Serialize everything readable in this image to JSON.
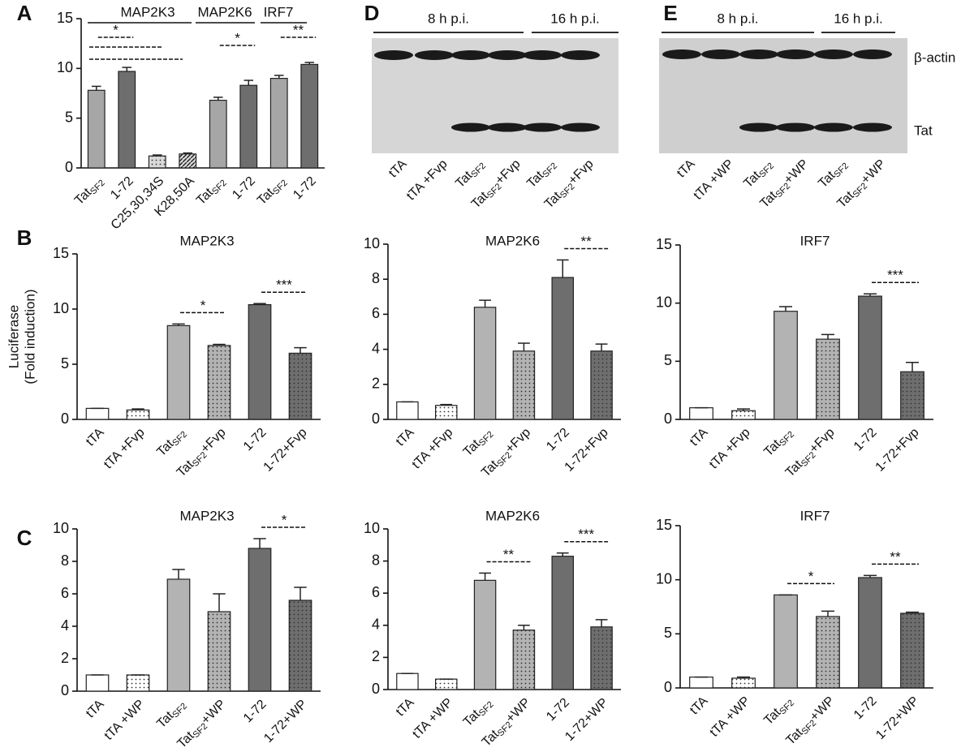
{
  "chart_data": [
    {
      "type": "bar",
      "panel": "A",
      "groups": [
        "MAP2K3",
        "MAP2K6",
        "IRF7"
      ],
      "categories": [
        {
          "text": "Tat",
          "sub": "SF2"
        },
        {
          "text": "1-72"
        },
        {
          "text": "C25,30,34S"
        },
        {
          "text": "K28,50A"
        },
        {
          "text": "Tat",
          "sub": "SF2"
        },
        {
          "text": "1-72"
        },
        {
          "text": "Tat",
          "sub": "SF2"
        },
        {
          "text": "1-72"
        }
      ],
      "values": [
        7.8,
        9.7,
        1.2,
        1.4,
        6.8,
        8.3,
        9.0,
        10.4
      ],
      "errors": [
        0.4,
        0.4,
        0.1,
        0.1,
        0.3,
        0.5,
        0.3,
        0.2
      ],
      "colors": [
        "#a6a6a6",
        "#6e6e6e",
        "#d9d9d9",
        "#d9d9d9",
        "#a6a6a6",
        "#6e6e6e",
        "#a6a6a6",
        "#6e6e6e"
      ],
      "hatch": [
        null,
        null,
        "dots",
        "stripes",
        null,
        null,
        null,
        null
      ],
      "significance": [
        "*",
        null,
        null,
        null,
        "*",
        null,
        "**",
        null
      ],
      "ylim": [
        0,
        15
      ],
      "yticks": [
        0,
        5,
        10,
        15
      ]
    },
    {
      "type": "bar",
      "panel": "B",
      "title": "MAP2K3",
      "ylabel": [
        "Luciferase",
        "(Fold induction)"
      ],
      "categories": [
        {
          "text": "tTA"
        },
        {
          "text": "tTA +Fvp"
        },
        {
          "text": "Tat",
          "sub": "SF2"
        },
        {
          "text": "Tat",
          "sub": "SF2",
          "suffix": "+Fvp"
        },
        {
          "text": "1-72"
        },
        {
          "text": "1-72+Fvp"
        }
      ],
      "values": [
        1.0,
        0.85,
        8.5,
        6.7,
        10.4,
        6.0
      ],
      "errors": [
        0,
        0.1,
        0.15,
        0.1,
        0.1,
        0.5
      ],
      "colors": [
        "#ffffff",
        "#ffffff",
        "#b3b3b3",
        "#b3b3b3",
        "#6e6e6e",
        "#6e6e6e"
      ],
      "hatch": [
        null,
        "dots",
        null,
        "dots",
        null,
        "dots"
      ],
      "significance": [
        null,
        null,
        "*",
        null,
        "***",
        null
      ],
      "ylim": [
        0,
        15
      ],
      "yticks": [
        0,
        5,
        10,
        15
      ]
    },
    {
      "type": "bar",
      "title": "MAP2K6",
      "categories": [
        {
          "text": "tTA"
        },
        {
          "text": "tTA +Fvp"
        },
        {
          "text": "Tat",
          "sub": "SF2"
        },
        {
          "text": "Tat",
          "sub": "SF2",
          "suffix": "+Fvp"
        },
        {
          "text": "1-72"
        },
        {
          "text": "1-72+Fvp"
        }
      ],
      "values": [
        1.0,
        0.8,
        6.4,
        3.9,
        8.1,
        3.9
      ],
      "errors": [
        0,
        0.05,
        0.4,
        0.45,
        1.0,
        0.4
      ],
      "colors": [
        "#ffffff",
        "#ffffff",
        "#b3b3b3",
        "#b3b3b3",
        "#6e6e6e",
        "#6e6e6e"
      ],
      "hatch": [
        null,
        "dots",
        null,
        "dots",
        null,
        "dots"
      ],
      "significance": [
        null,
        null,
        null,
        null,
        "**",
        null
      ],
      "ylim": [
        0,
        10
      ],
      "yticks": [
        0,
        2,
        4,
        6,
        8,
        10
      ]
    },
    {
      "type": "bar",
      "title": "IRF7",
      "categories": [
        {
          "text": "tTA"
        },
        {
          "text": "tTA +Fvp"
        },
        {
          "text": "Tat",
          "sub": "SF2"
        },
        {
          "text": "Tat",
          "sub": "SF2",
          "suffix": "+Fvp"
        },
        {
          "text": "1-72"
        },
        {
          "text": "1-72+Fvp"
        }
      ],
      "values": [
        1.0,
        0.75,
        9.3,
        6.9,
        10.6,
        4.1
      ],
      "errors": [
        0,
        0.15,
        0.4,
        0.4,
        0.2,
        0.8
      ],
      "colors": [
        "#ffffff",
        "#ffffff",
        "#b3b3b3",
        "#b3b3b3",
        "#6e6e6e",
        "#6e6e6e"
      ],
      "hatch": [
        null,
        "dots",
        null,
        "dots",
        null,
        "dots"
      ],
      "significance": [
        null,
        null,
        null,
        null,
        "***",
        null
      ],
      "ylim": [
        0,
        15
      ],
      "yticks": [
        0,
        5,
        10,
        15
      ]
    },
    {
      "type": "bar",
      "panel": "C",
      "title": "MAP2K3",
      "categories": [
        {
          "text": "tTA"
        },
        {
          "text": "tTA +WP"
        },
        {
          "text": "Tat",
          "sub": "SF2"
        },
        {
          "text": "Tat",
          "sub": "SF2",
          "suffix": "+WP"
        },
        {
          "text": "1-72"
        },
        {
          "text": "1-72+WP"
        }
      ],
      "values": [
        1.0,
        1.0,
        6.9,
        4.9,
        8.8,
        5.6
      ],
      "errors": [
        0,
        0,
        0.6,
        1.1,
        0.6,
        0.8
      ],
      "colors": [
        "#ffffff",
        "#ffffff",
        "#b3b3b3",
        "#b3b3b3",
        "#6e6e6e",
        "#6e6e6e"
      ],
      "hatch": [
        null,
        "dots",
        null,
        "dots",
        null,
        "dots"
      ],
      "significance": [
        null,
        null,
        null,
        null,
        "*",
        null
      ],
      "ylim": [
        0,
        10
      ],
      "yticks": [
        0,
        2,
        4,
        6,
        8,
        10
      ]
    },
    {
      "type": "bar",
      "title": "MAP2K6",
      "categories": [
        {
          "text": "tTA"
        },
        {
          "text": "tTA +WP"
        },
        {
          "text": "Tat",
          "sub": "SF2"
        },
        {
          "text": "Tat",
          "sub": "SF2",
          "suffix": "+WP"
        },
        {
          "text": "1-72"
        },
        {
          "text": "1-72+WP"
        }
      ],
      "values": [
        1.0,
        0.65,
        6.8,
        3.7,
        8.3,
        3.9
      ],
      "errors": [
        0,
        0,
        0.45,
        0.3,
        0.2,
        0.45
      ],
      "colors": [
        "#ffffff",
        "#ffffff",
        "#b3b3b3",
        "#b3b3b3",
        "#6e6e6e",
        "#6e6e6e"
      ],
      "hatch": [
        null,
        "dots",
        null,
        "dots",
        null,
        "dots"
      ],
      "significance": [
        null,
        null,
        "**",
        null,
        "***",
        null
      ],
      "ylim": [
        0,
        10
      ],
      "yticks": [
        0,
        2,
        4,
        6,
        8,
        10
      ]
    },
    {
      "type": "bar",
      "title": "IRF7",
      "categories": [
        {
          "text": "tTA"
        },
        {
          "text": "tTA +WP"
        },
        {
          "text": "Tat",
          "sub": "SF2"
        },
        {
          "text": "Tat",
          "sub": "SF2",
          "suffix": "+WP"
        },
        {
          "text": "1-72"
        },
        {
          "text": "1-72+WP"
        }
      ],
      "values": [
        1.0,
        0.9,
        8.6,
        6.6,
        10.2,
        6.9
      ],
      "errors": [
        0,
        0.1,
        0,
        0.5,
        0.2,
        0.1
      ],
      "colors": [
        "#ffffff",
        "#ffffff",
        "#b3b3b3",
        "#b3b3b3",
        "#6e6e6e",
        "#6e6e6e"
      ],
      "hatch": [
        null,
        "dots",
        null,
        "dots",
        null,
        "dots"
      ],
      "significance": [
        null,
        null,
        "*",
        null,
        "**",
        null
      ],
      "ylim": [
        0,
        15
      ],
      "yticks": [
        0,
        5,
        10,
        15
      ]
    }
  ],
  "blots": [
    {
      "panel": "D",
      "headers": [
        "8 h  p.i.",
        "16 h  p.i."
      ],
      "lanes": [
        {
          "text": "tTA"
        },
        {
          "text": "tTA +Fvp"
        },
        {
          "text": "Tat",
          "sub": "SF2"
        },
        {
          "text": "Tat",
          "sub": "SF2",
          "suffix": "+Fvp"
        },
        {
          "text": "Tat",
          "sub": "SF2"
        },
        {
          "text": "Tat",
          "sub": "SF2",
          "suffix": "+Fvp"
        }
      ]
    },
    {
      "panel": "E",
      "headers": [
        "8 h  p.i.",
        "16 h  p.i."
      ],
      "bands": [
        "β-actin",
        "Tat"
      ],
      "lanes": [
        {
          "text": "tTA"
        },
        {
          "text": "tTA +WP"
        },
        {
          "text": "Tat",
          "sub": "SF2"
        },
        {
          "text": "Tat",
          "sub": "SF2",
          "suffix": "+WP"
        },
        {
          "text": "Tat",
          "sub": "SF2"
        },
        {
          "text": "Tat",
          "sub": "SF2",
          "suffix": "+WP"
        }
      ]
    }
  ]
}
